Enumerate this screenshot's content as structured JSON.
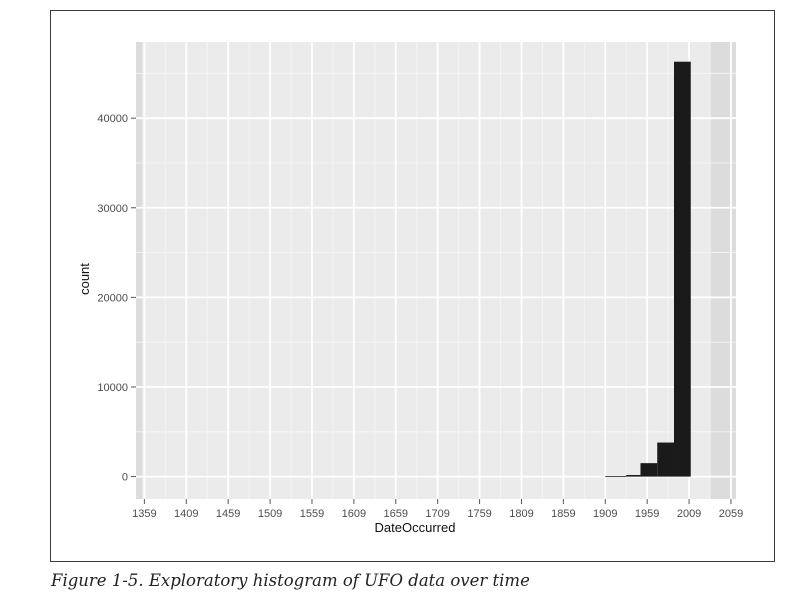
{
  "caption": "Figure 1-5. Exploratory histogram of UFO data over time",
  "chart_data": {
    "type": "bar",
    "title": "",
    "xlabel": "DateOccurred",
    "ylabel": "count",
    "xlim": [
      1349,
      2065
    ],
    "ylim": [
      -2500,
      48500
    ],
    "x_ticks": [
      1359,
      1409,
      1459,
      1509,
      1559,
      1609,
      1659,
      1709,
      1759,
      1809,
      1859,
      1909,
      1959,
      2009,
      2059
    ],
    "y_ticks": [
      0,
      10000,
      20000,
      30000,
      40000
    ],
    "y_tick_labels": [
      "0",
      "10000",
      "20000",
      "30000",
      "40000"
    ],
    "grid": true,
    "legend": "none",
    "bins": [
      {
        "x0": 1909,
        "x1": 1934,
        "count": 40
      },
      {
        "x0": 1934,
        "x1": 1951,
        "count": 180
      },
      {
        "x0": 1951,
        "x1": 1971,
        "count": 1500
      },
      {
        "x0": 1971,
        "x1": 1991,
        "count": 3800
      },
      {
        "x0": 1991,
        "x1": 2011,
        "count": 46300
      }
    ],
    "colors": {
      "panel": "#ebebeb",
      "panel_shade": "#dcdcdc",
      "grid": "#ffffff",
      "bar": "#1a1a1a"
    }
  }
}
